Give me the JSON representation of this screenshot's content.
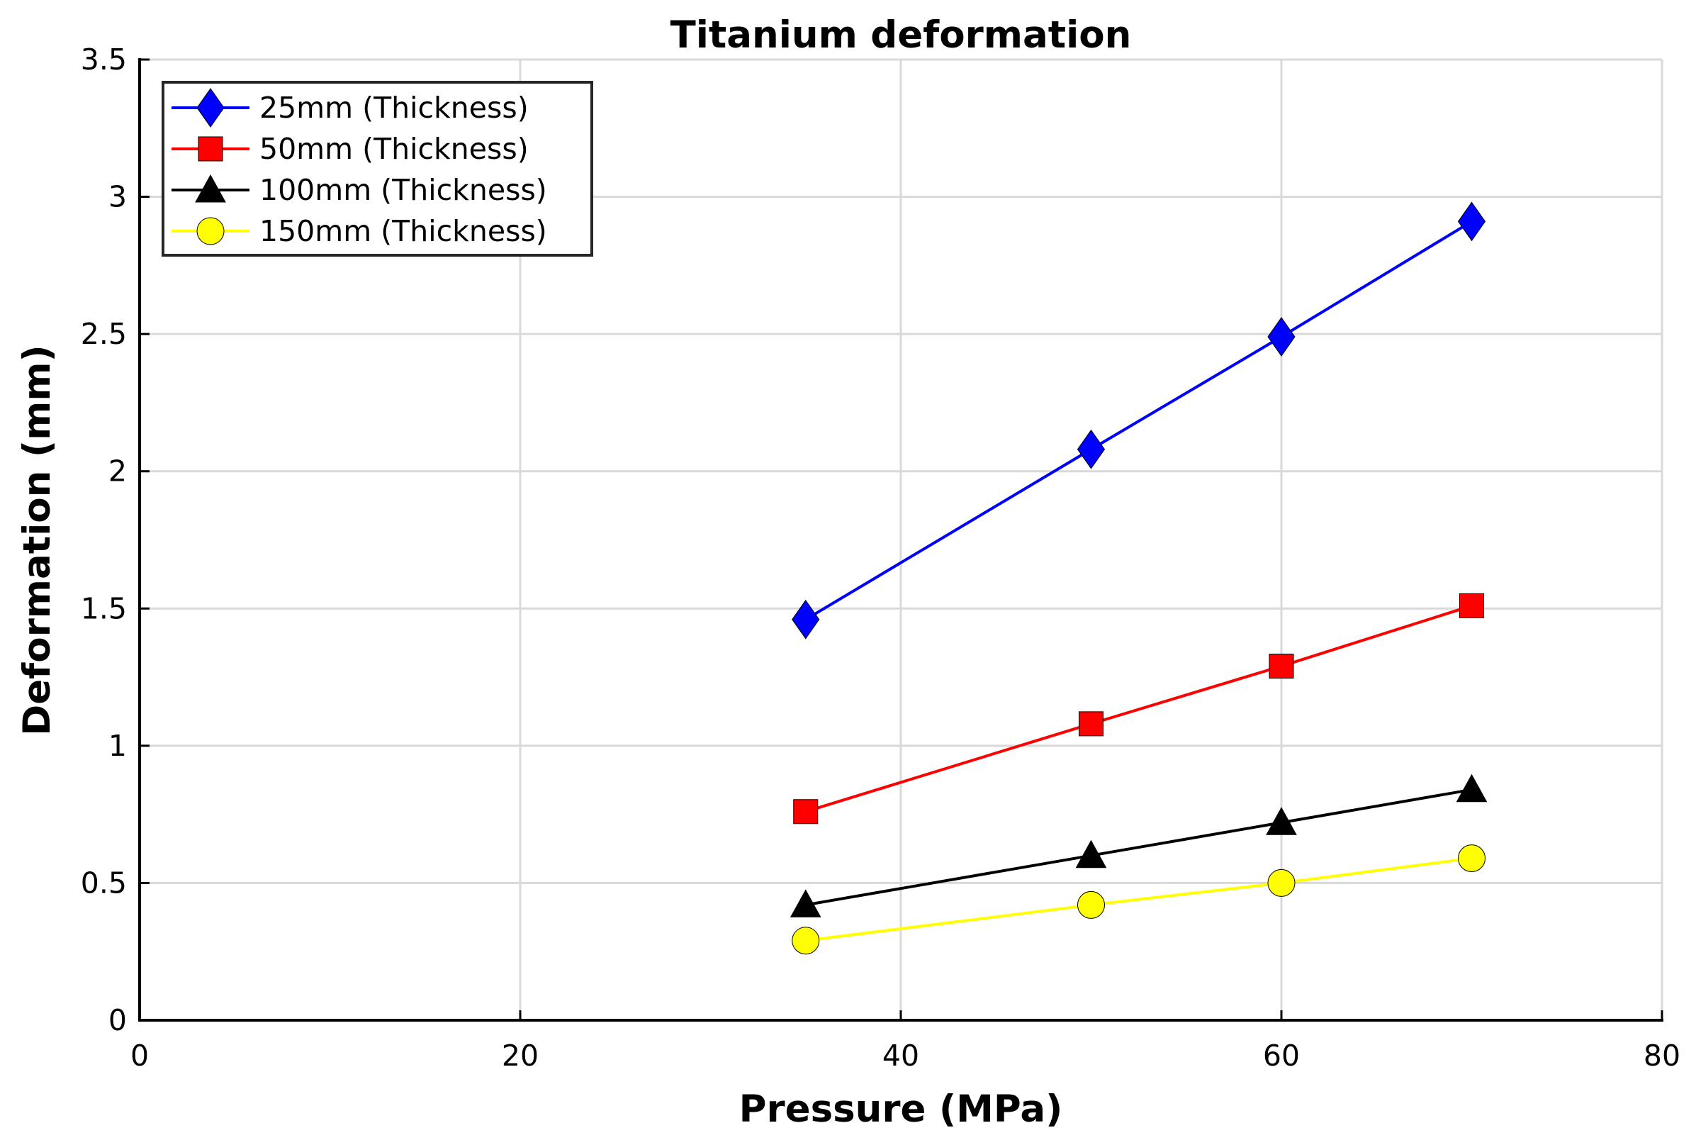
{
  "chart_data": {
    "type": "line",
    "title": "Titanium deformation",
    "xlabel": "Pressure (MPa)",
    "ylabel": "Deformation (mm)",
    "xlim": [
      0,
      80
    ],
    "ylim": [
      0,
      3.5
    ],
    "xticks": [
      0,
      20,
      40,
      60,
      80
    ],
    "yticks": [
      0,
      0.5,
      1,
      1.5,
      2,
      2.5,
      3,
      3.5
    ],
    "xtick_labels": [
      "0",
      "20",
      "40",
      "60",
      "80"
    ],
    "ytick_labels": [
      "0",
      "0.5",
      "1",
      "1.5",
      "2",
      "2.5",
      "3",
      "3.5"
    ],
    "grid": true,
    "legend_position": "top-left",
    "x": [
      35,
      50,
      60,
      70
    ],
    "series": [
      {
        "name": "25mm (Thickness)",
        "marker": "diamond",
        "color": "#0000ff",
        "values": [
          1.46,
          2.08,
          2.49,
          2.91
        ]
      },
      {
        "name": "50mm (Thickness)",
        "marker": "square",
        "color": "#ff0000",
        "values": [
          0.76,
          1.08,
          1.29,
          1.51
        ]
      },
      {
        "name": "100mm (Thickness)",
        "marker": "triangle",
        "color": "#000000",
        "values": [
          0.42,
          0.6,
          0.72,
          0.84
        ]
      },
      {
        "name": "150mm (Thickness)",
        "marker": "circle",
        "color": "#ffff00",
        "values": [
          0.29,
          0.42,
          0.5,
          0.59
        ]
      }
    ]
  }
}
